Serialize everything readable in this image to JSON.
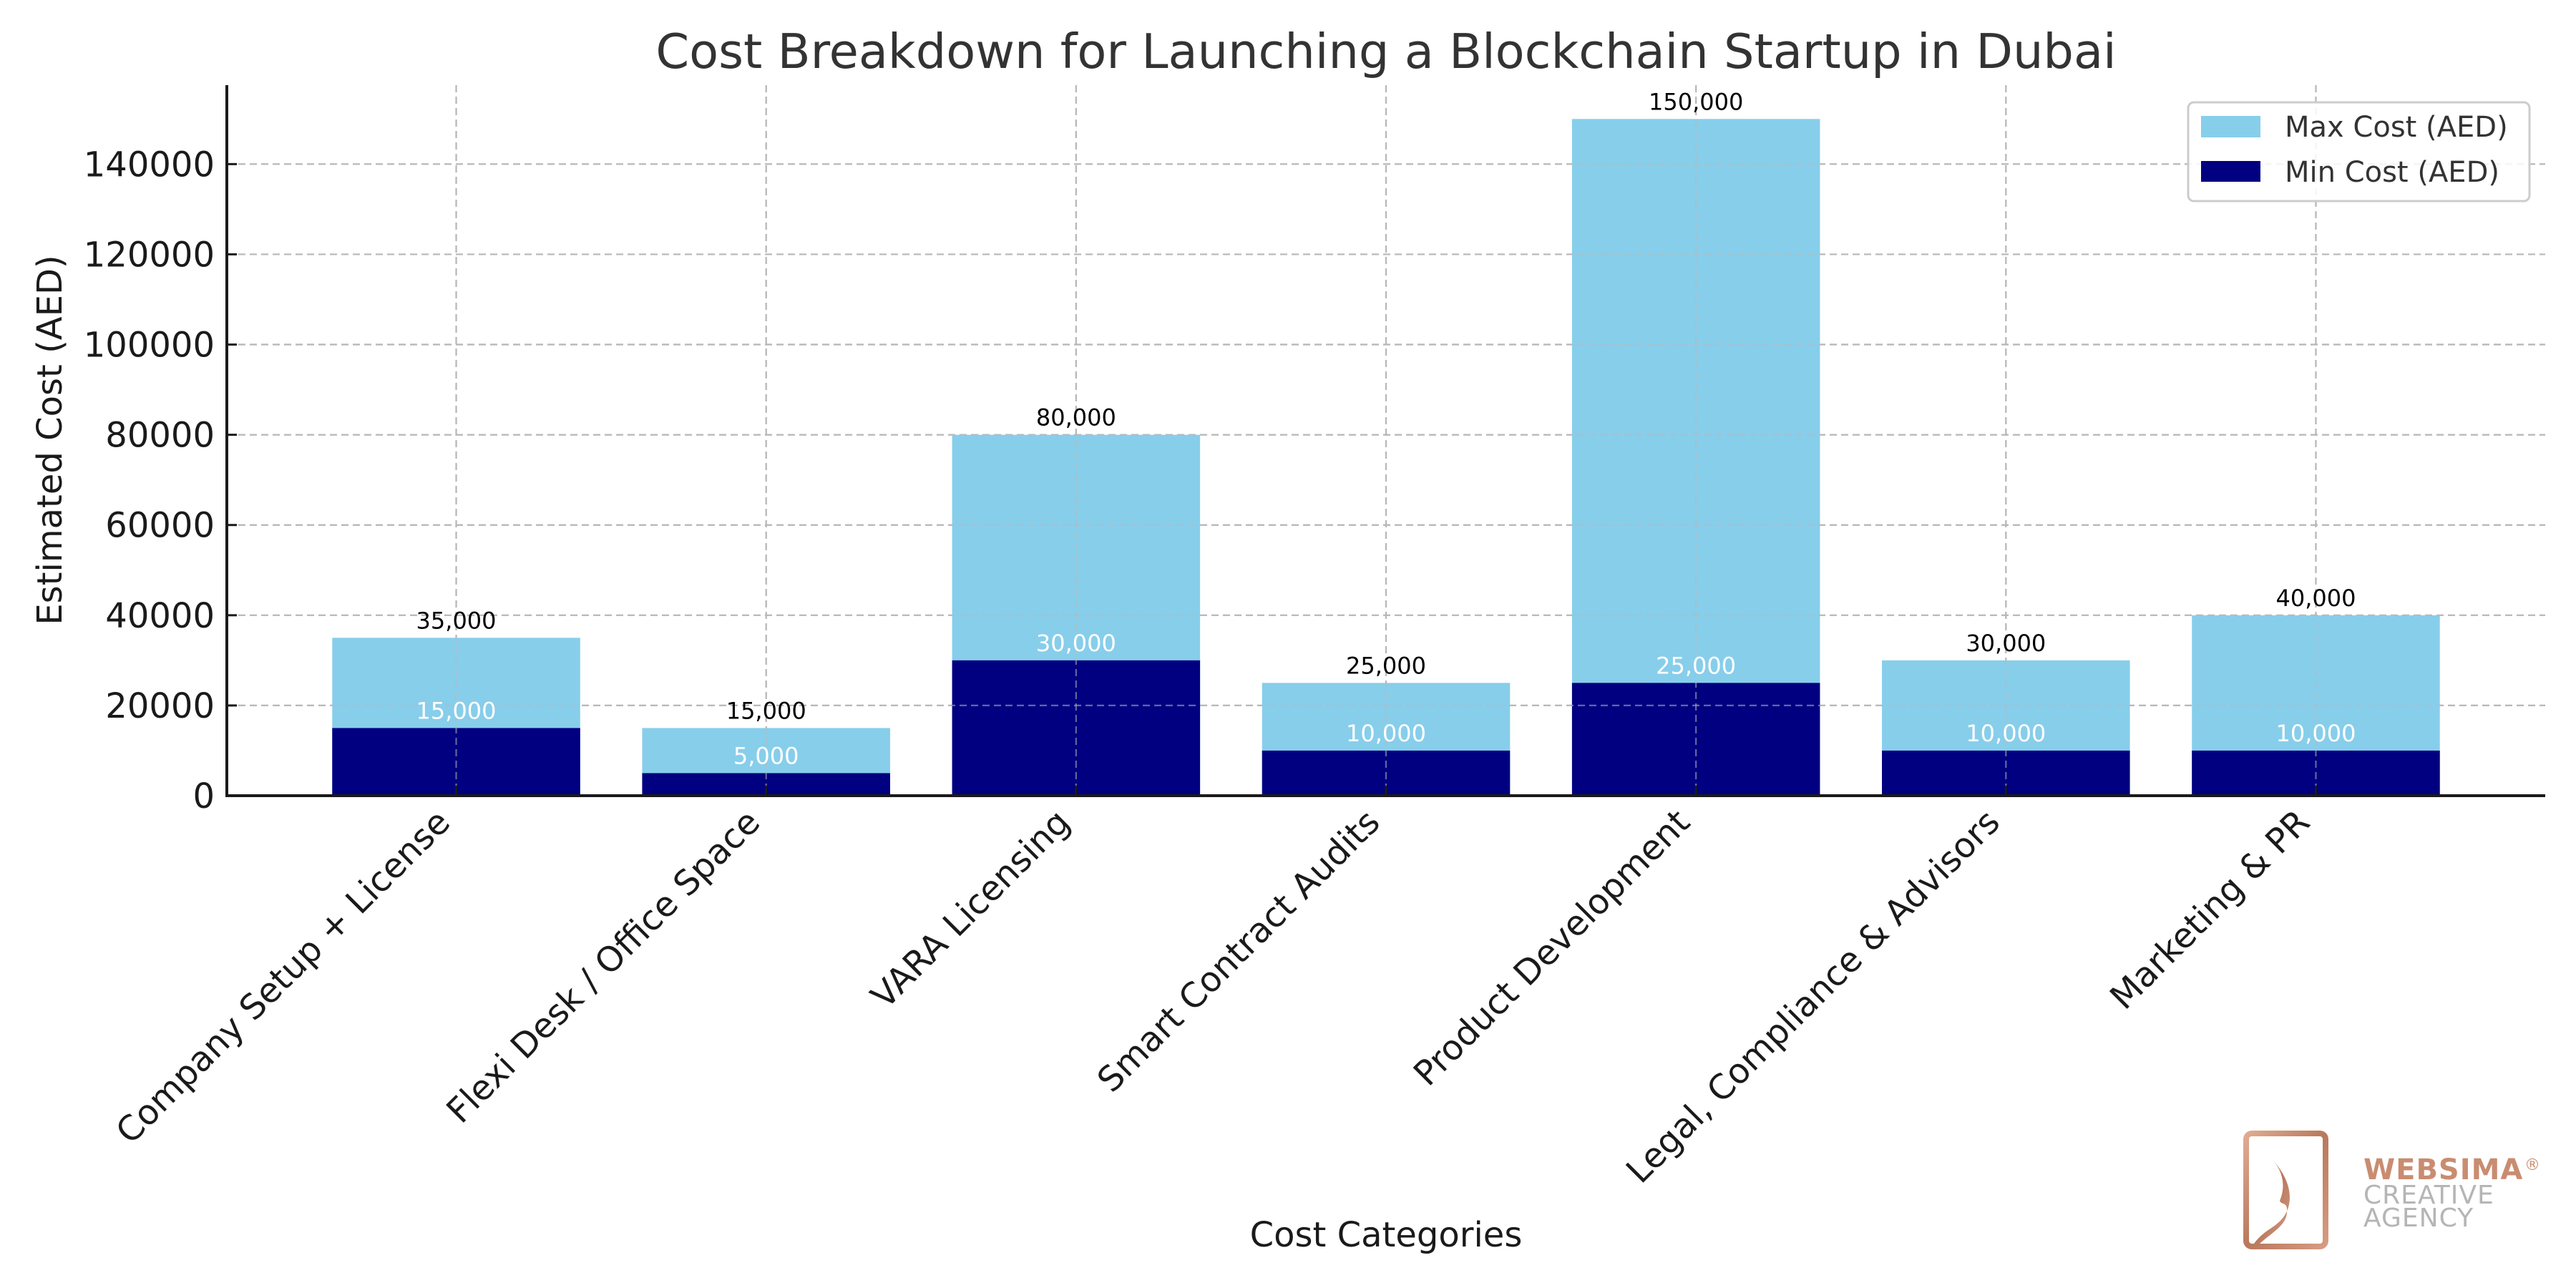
{
  "chart_data": {
    "type": "bar",
    "stacked": "overlay",
    "title": "Cost Breakdown for Launching a Blockchain Startup in Dubai",
    "xlabel": "Cost Categories",
    "ylabel": "Estimated Cost (AED)",
    "categories": [
      "Company Setup + License",
      "Flexi Desk / Office Space",
      "VARA Licensing",
      "Smart Contract Audits",
      "Product Development",
      "Legal, Compliance & Advisors",
      "Marketing & PR"
    ],
    "series": [
      {
        "name": "Max Cost (AED)",
        "color": "#87CEEB",
        "label_color": "#000000",
        "values": [
          35000,
          15000,
          80000,
          25000,
          150000,
          30000,
          40000
        ],
        "labels": [
          "35,000",
          "15,000",
          "80,000",
          "25,000",
          "150,000",
          "30,000",
          "40,000"
        ]
      },
      {
        "name": "Min Cost (AED)",
        "color": "#000080",
        "label_color": "#ffffff",
        "values": [
          15000,
          5000,
          30000,
          10000,
          25000,
          10000,
          10000
        ],
        "labels": [
          "15,000",
          "5,000",
          "30,000",
          "10,000",
          "25,000",
          "10,000",
          "10,000"
        ]
      }
    ],
    "ylim": [
      0,
      157500
    ],
    "yticks": [
      0,
      20000,
      40000,
      60000,
      80000,
      100000,
      120000,
      140000
    ],
    "ytick_labels": [
      "0",
      "20000",
      "40000",
      "60000",
      "80000",
      "100000",
      "120000",
      "140000"
    ],
    "xtick_rotation_deg": 45,
    "grid": true,
    "grid_style": "dashed",
    "legend": {
      "placement": "top-right",
      "entries": [
        "Max Cost (AED)",
        "Min Cost (AED)"
      ]
    }
  },
  "watermark": {
    "brand": "WEBSIMA",
    "registered_mark": "®",
    "line2": "CREATIVE",
    "line3": "AGENCY",
    "brand_color": "#c98c70",
    "sub_color": "#b5b5b5"
  }
}
